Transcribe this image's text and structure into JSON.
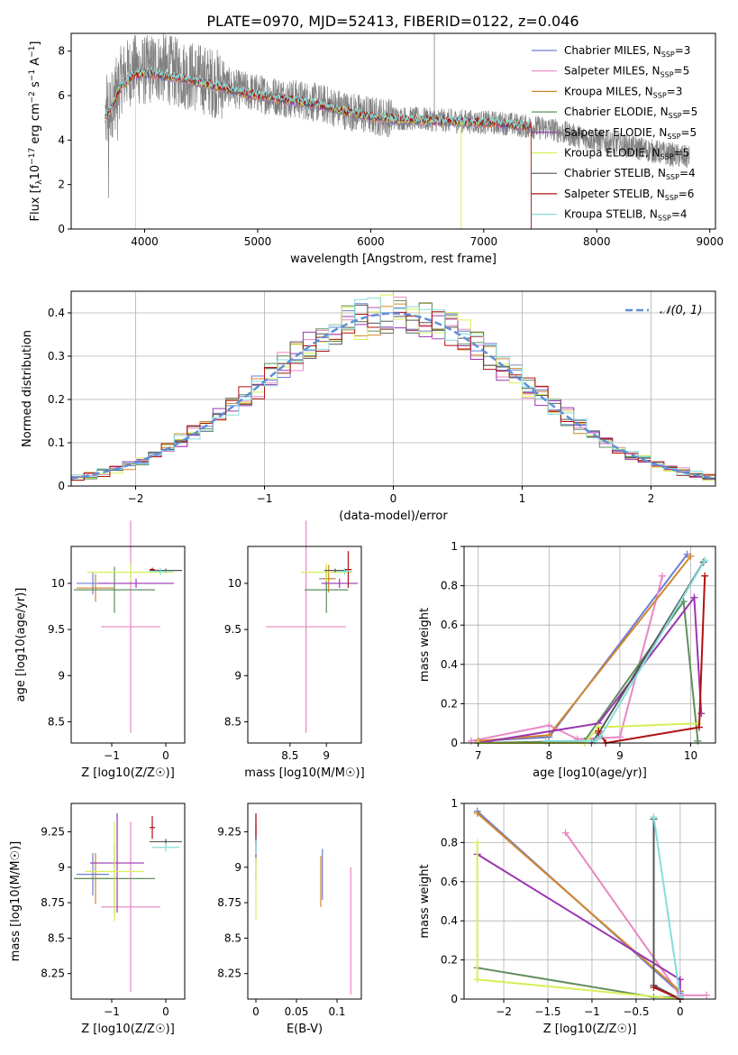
{
  "figure_title": "PLATE=0970, MJD=52413, FIBERID=0122, z=0.046",
  "colors": {
    "chabrier_miles": "#6a7fd4",
    "salpeter_miles": "#e987c4",
    "kroupa_miles": "#d2862f",
    "chabrier_elodie": "#5e8f5e",
    "salpeter_elodie": "#9a36b2",
    "kroupa_elodie": "#d7ef57",
    "chabrier_stelib": "#555555",
    "salpeter_stelib": "#b01111",
    "kroupa_stelib": "#86dcdc",
    "data": "#808080",
    "normal": "#5f8fd6",
    "grid": "#b0b0b0"
  },
  "models": [
    {
      "key": "chabrier_miles",
      "label": "Chabrier MILES, N",
      "nssp": "3"
    },
    {
      "key": "salpeter_miles",
      "label": "Salpeter MILES, N",
      "nssp": "5"
    },
    {
      "key": "kroupa_miles",
      "label": "Kroupa MILES, N",
      "nssp": "3"
    },
    {
      "key": "chabrier_elodie",
      "label": "Chabrier ELODIE, N",
      "nssp": "5"
    },
    {
      "key": "salpeter_elodie",
      "label": "Salpeter ELODIE, N",
      "nssp": "5"
    },
    {
      "key": "kroupa_elodie",
      "label": "Kroupa ELODIE, N",
      "nssp": "5"
    },
    {
      "key": "chabrier_stelib",
      "label": "Chabrier STELIB, N",
      "nssp": "4"
    },
    {
      "key": "salpeter_stelib",
      "label": "Salpeter STELIB, N",
      "nssp": "6"
    },
    {
      "key": "kroupa_stelib",
      "label": "Kroupa STELIB, N",
      "nssp": "4"
    }
  ],
  "chart_data": [
    {
      "id": "spectrum",
      "type": "line",
      "xlabel": "wavelength [Angstrom, rest frame]",
      "ylabel": "Flux [f_λ 10^-17 erg cm^-2 s^-1 A^-1]",
      "xlim": [
        3350,
        9050
      ],
      "ylim": [
        0,
        8.8
      ],
      "xticks": [
        4000,
        5000,
        6000,
        7000,
        8000,
        9000
      ],
      "yticks": [
        0,
        2,
        4,
        6,
        8
      ],
      "legend": "upper right",
      "data_envelope": {
        "x": [
          3650,
          3700,
          3800,
          3900,
          4000,
          4100,
          4200,
          4300,
          4400,
          4600,
          4800,
          5000,
          5200,
          5400,
          5600,
          5800,
          6000,
          6200,
          6400,
          6600,
          6800,
          7000,
          7200,
          7400,
          7600,
          7800,
          8000,
          8200,
          8400,
          8600,
          8820
        ],
        "y": [
          5.0,
          5.5,
          6.8,
          7.2,
          7.1,
          7.3,
          7.2,
          7.0,
          6.9,
          6.6,
          6.3,
          6.1,
          5.95,
          5.8,
          5.6,
          5.3,
          5.1,
          5.0,
          4.95,
          4.9,
          4.85,
          4.8,
          4.75,
          4.6,
          4.5,
          4.2,
          4.0,
          3.8,
          3.6,
          3.4,
          3.2
        ]
      },
      "model_continuum": {
        "x": [
          3650,
          3700,
          3800,
          3900,
          4000,
          4100,
          4200,
          4300,
          4400,
          4600,
          4800,
          5000,
          5200,
          5400,
          5600,
          5800,
          6000,
          6200,
          6400,
          6600,
          6800,
          7000,
          7200,
          7400
        ],
        "y": [
          5.0,
          5.4,
          6.5,
          6.9,
          7.0,
          6.95,
          6.85,
          6.8,
          6.7,
          6.45,
          6.2,
          6.0,
          5.85,
          5.7,
          5.5,
          5.25,
          5.05,
          4.95,
          4.9,
          4.85,
          4.82,
          4.78,
          4.72,
          4.6
        ]
      }
    },
    {
      "id": "residuals",
      "type": "histogram",
      "xlabel": "(data-model)/error",
      "ylabel": "Normed distribution",
      "xlim": [
        -2.5,
        2.5
      ],
      "ylim": [
        0,
        0.45
      ],
      "xticks": [
        -2,
        -1,
        0,
        1,
        2
      ],
      "yticks": [
        0.0,
        0.1,
        0.2,
        0.3,
        0.4
      ],
      "legend_label": "𝒩(0, 1)",
      "bins": 50,
      "grid": true
    },
    {
      "id": "age_vs_Z",
      "type": "errorbar",
      "xlabel": "Z [log10(Z/Z☉)]",
      "ylabel": "age [log10(age/yr)]",
      "xlim": [
        -1.75,
        0.35
      ],
      "ylim": [
        8.27,
        10.4
      ],
      "xticks": [
        -1,
        0
      ],
      "yticks": [
        8.5,
        9.0,
        9.5,
        10.0
      ],
      "points": [
        {
          "m": "chabrier_miles",
          "x": -1.35,
          "y": 10.0,
          "xerr": 0.3,
          "yerr": 0.12
        },
        {
          "m": "salpeter_miles",
          "x": -0.65,
          "y": 9.53,
          "xerr": 0.55,
          "yerr": 1.15
        },
        {
          "m": "kroupa_miles",
          "x": -1.3,
          "y": 9.95,
          "xerr": 0.35,
          "yerr": 0.15
        },
        {
          "m": "chabrier_elodie",
          "x": -0.95,
          "y": 9.93,
          "xerr": 0.75,
          "yerr": 0.25
        },
        {
          "m": "salpeter_elodie",
          "x": -0.55,
          "y": 10.0,
          "xerr": 0.7,
          "yerr": 0.05
        },
        {
          "m": "kroupa_elodie",
          "x": -0.65,
          "y": 10.12,
          "xerr": 0.8,
          "yerr": 0.1
        },
        {
          "m": "chabrier_stelib",
          "x": 0.0,
          "y": 10.14,
          "xerr": 0.3,
          "yerr": 0.02
        },
        {
          "m": "salpeter_stelib",
          "x": -0.25,
          "y": 10.15,
          "xerr": 0.05,
          "yerr": 0.02
        },
        {
          "m": "kroupa_stelib",
          "x": -0.1,
          "y": 10.13,
          "xerr": 0.2,
          "yerr": 0.04
        }
      ]
    },
    {
      "id": "age_vs_mass",
      "type": "errorbar",
      "xlabel": "mass [log10(M/M☉)]",
      "ylabel": "",
      "xlim": [
        7.92,
        9.48
      ],
      "ylim": [
        8.27,
        10.4
      ],
      "xticks": [
        8.5,
        9.0
      ],
      "yticks": [
        8.5,
        9.0,
        9.5,
        10.0
      ],
      "points": [
        {
          "m": "chabrier_miles",
          "x": 9.0,
          "y": 10.05,
          "xerr": 0.1,
          "yerr": 0.12
        },
        {
          "m": "salpeter_miles",
          "x": 8.72,
          "y": 9.53,
          "xerr": 0.55,
          "yerr": 1.15
        },
        {
          "m": "kroupa_miles",
          "x": 9.03,
          "y": 10.05,
          "xerr": 0.1,
          "yerr": 0.15
        },
        {
          "m": "chabrier_elodie",
          "x": 9.0,
          "y": 9.93,
          "xerr": 0.3,
          "yerr": 0.25
        },
        {
          "m": "salpeter_elodie",
          "x": 9.18,
          "y": 10.0,
          "xerr": 0.25,
          "yerr": 0.05
        },
        {
          "m": "kroupa_elodie",
          "x": 9.0,
          "y": 10.12,
          "xerr": 0.35,
          "yerr": 0.1
        },
        {
          "m": "chabrier_stelib",
          "x": 9.12,
          "y": 10.14,
          "xerr": 0.15,
          "yerr": 0.02
        },
        {
          "m": "salpeter_stelib",
          "x": 9.3,
          "y": 10.15,
          "xerr": 0.05,
          "yerr": 0.2
        },
        {
          "m": "kroupa_stelib",
          "x": 9.25,
          "y": 10.13,
          "xerr": 0.1,
          "yerr": 0.04
        }
      ]
    },
    {
      "id": "weight_vs_age",
      "type": "line",
      "xlabel": "age [log10(age/yr)]",
      "ylabel": "mass weight",
      "xlim": [
        6.8,
        10.35
      ],
      "ylim": [
        0,
        1.0
      ],
      "xticks": [
        7,
        8,
        9,
        10
      ],
      "yticks": [
        0.0,
        0.2,
        0.4,
        0.6,
        0.8,
        1.0
      ],
      "grid": true,
      "series": [
        {
          "m": "chabrier_miles",
          "x": [
            7.0,
            8.0,
            9.95
          ],
          "y": [
            0.01,
            0.03,
            0.96
          ]
        },
        {
          "m": "salpeter_miles",
          "x": [
            6.9,
            8.0,
            8.4,
            9.0,
            9.6
          ],
          "y": [
            0.01,
            0.09,
            0.02,
            0.03,
            0.85
          ]
        },
        {
          "m": "kroupa_miles",
          "x": [
            7.0,
            8.0,
            10.0
          ],
          "y": [
            0.01,
            0.04,
            0.95
          ]
        },
        {
          "m": "chabrier_elodie",
          "x": [
            7.0,
            8.5,
            9.9,
            10.1
          ],
          "y": [
            0.0,
            0.01,
            0.72,
            0.01
          ]
        },
        {
          "m": "salpeter_elodie",
          "x": [
            7.0,
            8.7,
            10.05,
            10.15
          ],
          "y": [
            0.0,
            0.1,
            0.74,
            0.15
          ]
        },
        {
          "m": "kroupa_elodie",
          "x": [
            7.0,
            8.5,
            8.7,
            10.1
          ],
          "y": [
            0.0,
            0.0,
            0.08,
            0.1
          ]
        },
        {
          "m": "chabrier_stelib",
          "x": [
            8.6,
            8.7,
            10.18
          ],
          "y": [
            0.0,
            0.05,
            0.92
          ]
        },
        {
          "m": "salpeter_stelib",
          "x": [
            8.7,
            8.8,
            10.12,
            10.2
          ],
          "y": [
            0.06,
            0.0,
            0.08,
            0.85
          ]
        },
        {
          "m": "kroupa_stelib",
          "x": [
            7.95,
            8.65,
            8.72,
            10.2
          ],
          "y": [
            0.01,
            0.01,
            0.03,
            0.93
          ]
        }
      ]
    },
    {
      "id": "mass_vs_Z",
      "type": "errorbar",
      "xlabel": "Z [log10(Z/Z☉)]",
      "ylabel": "mass [log10(M/M☉)]",
      "xlim": [
        -1.75,
        0.35
      ],
      "ylim": [
        8.07,
        9.45
      ],
      "xticks": [
        -1,
        0
      ],
      "yticks": [
        8.25,
        8.5,
        8.75,
        9.0,
        9.25
      ],
      "points": [
        {
          "m": "chabrier_miles",
          "x": -1.35,
          "y": 8.95,
          "xerr": 0.3,
          "yerr": 0.15
        },
        {
          "m": "salpeter_miles",
          "x": -0.65,
          "y": 8.72,
          "xerr": 0.55,
          "yerr": 0.6
        },
        {
          "m": "kroupa_miles",
          "x": -1.3,
          "y": 8.92,
          "xerr": 0.4,
          "yerr": 0.18
        },
        {
          "m": "chabrier_elodie",
          "x": -0.95,
          "y": 8.92,
          "xerr": 0.75,
          "yerr": 0.25
        },
        {
          "m": "salpeter_elodie",
          "x": -0.9,
          "y": 9.03,
          "xerr": 0.5,
          "yerr": 0.35
        },
        {
          "m": "kroupa_elodie",
          "x": -0.95,
          "y": 8.97,
          "xerr": 0.55,
          "yerr": 0.35
        },
        {
          "m": "chabrier_stelib",
          "x": 0.0,
          "y": 9.18,
          "xerr": 0.3,
          "yerr": 0.02
        },
        {
          "m": "salpeter_stelib",
          "x": -0.25,
          "y": 9.28,
          "xerr": 0.05,
          "yerr": 0.08
        },
        {
          "m": "kroupa_stelib",
          "x": 0.0,
          "y": 9.14,
          "xerr": 0.25,
          "yerr": 0.03
        }
      ]
    },
    {
      "id": "mass_vs_ebv",
      "type": "errorbar",
      "xlabel": "E(B-V)",
      "ylabel": "",
      "xlim": [
        -0.01,
        0.13
      ],
      "ylim": [
        8.07,
        9.45
      ],
      "xticks": [
        0.0,
        0.05,
        0.1
      ],
      "yticks": [
        8.25,
        8.5,
        8.75,
        9.0,
        9.25
      ],
      "points": [
        {
          "m": "chabrier_miles",
          "x": 0.082,
          "y": 8.95,
          "xerr": 0,
          "yerr": 0.18
        },
        {
          "m": "salpeter_miles",
          "x": 0.117,
          "y": 8.55,
          "xerr": 0,
          "yerr": 0.45
        },
        {
          "m": "kroupa_miles",
          "x": 0.08,
          "y": 8.9,
          "xerr": 0,
          "yerr": 0.18
        },
        {
          "m": "chabrier_elodie",
          "x": 0.0,
          "y": 9.1,
          "xerr": 0,
          "yerr": 0.2
        },
        {
          "m": "salpeter_elodie",
          "x": 0.0,
          "y": 9.2,
          "xerr": 0,
          "yerr": 0.15
        },
        {
          "m": "kroupa_elodie",
          "x": 0.0,
          "y": 8.85,
          "xerr": 0,
          "yerr": 0.22
        },
        {
          "m": "chabrier_stelib",
          "x": 0.0,
          "y": 9.18,
          "xerr": 0,
          "yerr": 0.03
        },
        {
          "m": "salpeter_stelib",
          "x": 0.0,
          "y": 9.3,
          "xerr": 0,
          "yerr": 0.08
        },
        {
          "m": "kroupa_stelib",
          "x": 0.0,
          "y": 9.14,
          "xerr": 0,
          "yerr": 0.05
        }
      ]
    },
    {
      "id": "weight_vs_Z",
      "type": "line",
      "xlabel": "Z [log10(Z/Z☉)]",
      "ylabel": "mass weight",
      "xlim": [
        -2.45,
        0.4
      ],
      "ylim": [
        0,
        1.0
      ],
      "xticks": [
        -2.0,
        -1.5,
        -1.0,
        -0.5,
        0.0
      ],
      "yticks": [
        0.0,
        0.2,
        0.4,
        0.6,
        0.8,
        1.0
      ],
      "grid": true,
      "series": [
        {
          "m": "chabrier_miles",
          "x": [
            -2.3,
            0.0
          ],
          "y": [
            0.96,
            0.03
          ]
        },
        {
          "m": "salpeter_miles",
          "x": [
            -1.3,
            0.0,
            0.3
          ],
          "y": [
            0.85,
            0.02,
            0.02
          ]
        },
        {
          "m": "kroupa_miles",
          "x": [
            -2.3,
            0.0
          ],
          "y": [
            0.95,
            0.04
          ]
        },
        {
          "m": "chabrier_elodie",
          "x": [
            -2.3,
            -0.3,
            0.0
          ],
          "y": [
            0.16,
            0.01,
            0.01
          ]
        },
        {
          "m": "salpeter_elodie",
          "x": [
            -2.3,
            0.0,
            0.0
          ],
          "y": [
            0.74,
            0.1,
            0.0
          ]
        },
        {
          "m": "kroupa_elodie",
          "x": [
            -2.3,
            -2.3,
            0.0
          ],
          "y": [
            0.8,
            0.1,
            0.0
          ]
        },
        {
          "m": "chabrier_stelib",
          "x": [
            -0.3,
            -0.3,
            0.0
          ],
          "y": [
            0.92,
            0.07,
            0.0
          ]
        },
        {
          "m": "salpeter_stelib",
          "x": [
            -0.3,
            0.0,
            0.0
          ],
          "y": [
            0.06,
            0.0,
            0.0
          ]
        },
        {
          "m": "kroupa_stelib",
          "x": [
            -0.3,
            0.0
          ],
          "y": [
            0.93,
            0.01
          ]
        }
      ]
    }
  ]
}
